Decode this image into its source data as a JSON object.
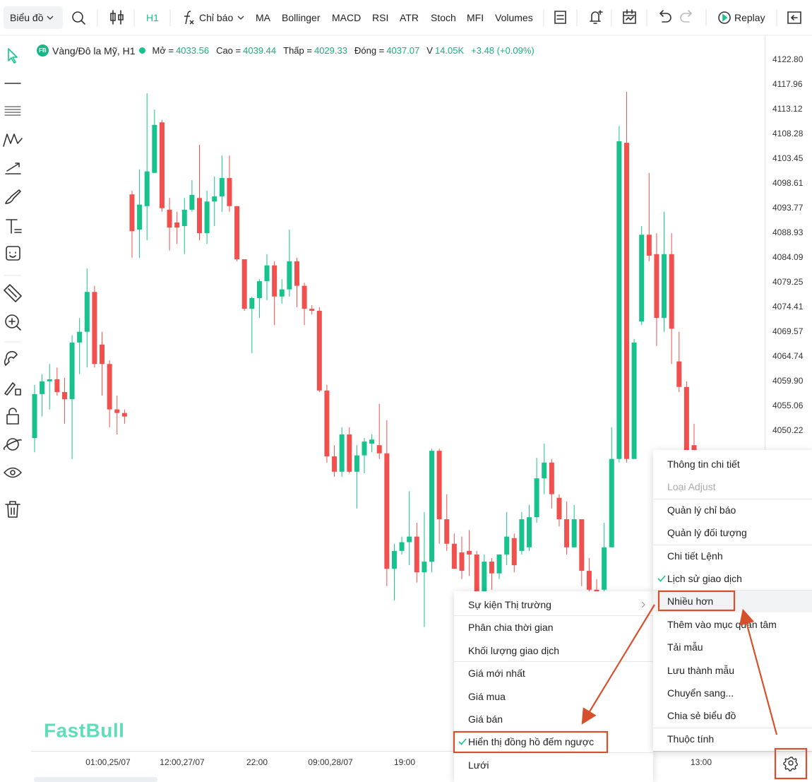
{
  "toolbar": {
    "chart_menu": "Biểu đồ",
    "interval": "H1",
    "indicators": "Chỉ báo",
    "quick_indicators": [
      "MA",
      "Bollinger",
      "MACD",
      "RSI",
      "ATR",
      "Stoch",
      "MFI",
      "Volumes"
    ],
    "replay": "Replay"
  },
  "legend": {
    "badge": "FB",
    "symbol": "Vàng/Đô la Mỹ, H1",
    "fields": [
      {
        "label": "Mở =",
        "value": 4033.56
      },
      {
        "label": "Cao =",
        "value": 4039.44
      },
      {
        "label": "Thấp =",
        "value": 4029.33
      },
      {
        "label": "Đóng =",
        "value": 4037.07
      }
    ],
    "volume_label": "V",
    "volume": "14.05K",
    "change": "+3.48 (+0.09%)"
  },
  "chart_data": {
    "type": "candlestick",
    "up_color": "#17c28d",
    "down_color": "#f0514e",
    "ylim": [
      3987.54,
      4126.95
    ],
    "yticks": [
      {
        "value": 4122.8,
        "label": "4122.80"
      },
      4117.96,
      4113.12,
      4108.28,
      4103.45,
      4098.61,
      4093.77,
      4088.93,
      4084.09,
      4079.25,
      4074.41,
      4069.57,
      4064.74,
      {
        "value": 4059.9,
        "label": "4059.90"
      },
      4055.06,
      4050.22
    ],
    "grid": false,
    "x_labels": [
      "01:00,25/07",
      "12:00,27/07",
      "22:00",
      "09:00,28/07",
      "19:00",
      "13:00"
    ],
    "ohlc": [
      [
        4048.8,
        4059.2,
        4046.0,
        4057.4
      ],
      [
        4057.4,
        4061.3,
        4053.0,
        4059.9
      ],
      [
        4059.9,
        4063.3,
        4054.4,
        4060.3
      ],
      [
        4060.3,
        4062.6,
        4057.1,
        4057.8
      ],
      [
        4057.8,
        4060.6,
        4051.6,
        4056.4
      ],
      [
        4056.4,
        4068.9,
        4044.7,
        4067.5
      ],
      [
        4067.5,
        4072.3,
        4061.3,
        4069.6
      ],
      [
        4069.6,
        4082.0,
        4062.6,
        4077.4
      ],
      [
        4077.4,
        4078.6,
        4062.6,
        4063.3
      ],
      [
        4067.1,
        4069.6,
        4057.1,
        4063.3
      ],
      [
        4063.3,
        4064.0,
        4050.9,
        4054.4
      ],
      [
        4054.4,
        4057.1,
        4049.5,
        4053.7
      ],
      [
        4053.7,
        4054.4,
        4051.6,
        4053.0
      ],
      [
        4096.5,
        4097.2,
        4084.1,
        4089.3
      ],
      [
        4089.6,
        4101.4,
        4084.1,
        4094.5
      ],
      [
        4094.2,
        4116.3,
        4087.5,
        4101.0
      ],
      [
        4100.7,
        4113.1,
        4100.7,
        4110.1
      ],
      [
        4110.6,
        4111.1,
        4093.1,
        4093.8
      ],
      [
        4093.5,
        4095.8,
        4085.5,
        4090.0
      ],
      [
        4091.0,
        4093.1,
        4086.8,
        4090.0
      ],
      [
        4090.3,
        4095.8,
        4084.8,
        4093.5
      ],
      [
        4093.5,
        4099.3,
        4093.1,
        4096.4
      ],
      [
        4095.8,
        4106.2,
        4087.5,
        4088.9
      ],
      [
        4088.9,
        4097.2,
        4086.8,
        4095.1
      ],
      [
        4095.1,
        4100.0,
        4090.3,
        4096.1
      ],
      [
        4096.1,
        4104.1,
        4093.1,
        4099.7
      ],
      [
        4099.7,
        4104.1,
        4093.1,
        4094.2
      ],
      [
        4094.2,
        4094.2,
        4083.4,
        4083.8
      ],
      [
        4083.8,
        4083.8,
        4073.7,
        4074.1
      ],
      [
        4074.1,
        4076.5,
        4065.4,
        4076.2
      ],
      [
        4076.2,
        4079.9,
        4072.3,
        4079.5
      ],
      [
        4079.5,
        4084.8,
        4075.8,
        4082.6
      ],
      [
        4082.6,
        4083.4,
        4070.9,
        4076.5
      ],
      [
        4076.5,
        4079.9,
        4075.1,
        4077.9
      ],
      [
        4077.9,
        4089.6,
        4076.5,
        4083.4
      ],
      [
        4083.4,
        4084.1,
        4074.4,
        4078.6
      ],
      [
        4078.6,
        4079.2,
        4070.9,
        4074.1
      ],
      [
        4074.1,
        4074.8,
        4073.0,
        4073.7
      ],
      [
        4073.7,
        4074.4,
        4057.8,
        4058.1
      ],
      [
        4058.1,
        4059.2,
        4044.0,
        4045.2
      ],
      [
        4045.2,
        4047.4,
        4041.2,
        4042.2
      ],
      [
        4042.2,
        4050.9,
        4041.2,
        4049.5
      ],
      [
        4049.5,
        4050.9,
        4041.9,
        4042.2
      ],
      [
        4042.2,
        4047.4,
        4035.0,
        4045.4
      ],
      [
        4045.4,
        4048.8,
        4041.9,
        4048.1
      ],
      [
        4047.7,
        4049.5,
        4046.0,
        4048.5
      ],
      [
        4047.4,
        4055.5,
        4044.7,
        4045.8
      ],
      [
        4045.8,
        4052.3,
        4019.8,
        4023.2
      ],
      [
        4023.2,
        4028.1,
        4017.0,
        4026.7
      ],
      [
        4026.7,
        4029.5,
        4026.0,
        4028.4
      ],
      [
        4028.4,
        4038.4,
        4023.9,
        4029.5
      ],
      [
        4029.5,
        4032.2,
        4020.5,
        4022.5
      ],
      [
        4022.5,
        4034.3,
        4011.8,
        4024.6
      ],
      [
        4024.6,
        4046.7,
        4022.5,
        4046.3
      ],
      [
        4046.3,
        4046.7,
        4028.1,
        4032.9
      ],
      [
        4032.9,
        4037.8,
        4026.7,
        4028.1
      ],
      [
        4028.1,
        4030.1,
        4023.2,
        4023.2
      ],
      [
        4026.4,
        4029.5,
        4021.2,
        4022.8
      ],
      [
        4026.7,
        4030.8,
        4021.8,
        4026.0
      ],
      [
        4026.0,
        4026.7,
        4018.4,
        4018.4
      ],
      [
        4018.4,
        4026.0,
        4017.7,
        4024.6
      ],
      [
        4024.6,
        4025.3,
        4019.1,
        4022.3
      ],
      [
        4022.3,
        4026.0,
        4021.2,
        4026.0
      ],
      [
        4026.0,
        4034.3,
        4023.9,
        4029.5
      ],
      [
        4029.2,
        4030.1,
        4022.5,
        4023.9
      ],
      [
        4026.7,
        4034.3,
        4026.0,
        4032.9
      ],
      [
        4027.4,
        4035.7,
        4026.7,
        4033.3
      ],
      [
        4033.3,
        4044.9,
        4032.2,
        4040.9
      ],
      [
        4040.9,
        4047.7,
        4037.8,
        4044.0
      ],
      [
        4044.0,
        4044.7,
        4035.0,
        4037.8
      ],
      [
        4037.1,
        4037.8,
        4031.5,
        4032.9
      ],
      [
        4032.9,
        4036.4,
        4026.0,
        4027.4
      ],
      [
        4027.4,
        4035.7,
        4027.4,
        4032.9
      ],
      [
        4032.9,
        4032.9,
        4019.8,
        4022.8
      ],
      [
        4022.8,
        4025.3,
        4018.4,
        4019.1
      ],
      [
        4019.1,
        4021.2,
        4017.7,
        4018.4
      ],
      [
        4019.1,
        4032.2,
        4018.4,
        4027.4
      ],
      [
        4027.4,
        4050.9,
        4027.4,
        4044.7
      ],
      [
        4044.7,
        4109.9,
        4044.0,
        4106.9
      ],
      [
        4106.6,
        4116.6,
        4044.0,
        4044.7
      ],
      [
        4044.7,
        4068.2,
        4044.7,
        4067.5
      ],
      [
        4071.6,
        4090.3,
        4070.9,
        4088.6
      ],
      [
        4088.6,
        4100.7,
        4083.4,
        4084.5
      ],
      [
        4084.8,
        4088.9,
        4066.8,
        4072.3
      ],
      [
        4072.3,
        4093.1,
        4069.6,
        4084.8
      ],
      [
        4084.8,
        4088.9,
        4063.3,
        4070.2
      ],
      [
        4063.8,
        4069.6,
        4057.8,
        4058.8
      ],
      [
        4058.8,
        4059.9,
        4046.0,
        4046.0
      ],
      [
        4047.4,
        4051.6,
        4046.0,
        4046.0
      ]
    ]
  },
  "watermark": "FastBull",
  "context_menu": {
    "items": [
      {
        "label": "Thông tin chi tiết"
      },
      {
        "label": "Loại Adjust",
        "disabled": true
      },
      {
        "label": "Quản lý chỉ báo"
      },
      {
        "label": "Quản lý đối tượng"
      },
      {
        "label": "Chi tiết Lệnh"
      },
      {
        "label": "Lịch sử giao dịch",
        "checked": true
      },
      {
        "label": "Nhiều hơn",
        "active": true
      },
      {
        "label": "Thêm vào mục quan tâm"
      },
      {
        "label": "Tải mẫu"
      },
      {
        "label": "Lưu thành mẫu"
      },
      {
        "label": "Chuyển sang..."
      },
      {
        "label": "Chia sẻ biểu đồ"
      },
      {
        "label": "Thuộc tính"
      }
    ]
  },
  "submenu": {
    "items": [
      {
        "label": "Sự kiện Thị trường",
        "has_submenu": true
      },
      {
        "label": "Phân chia thời gian"
      },
      {
        "label": "Khối lượng giao dịch"
      },
      {
        "label": "Giá mới nhất"
      },
      {
        "label": "Giá mua"
      },
      {
        "label": "Giá bán"
      },
      {
        "label": "Hiển thị đồng hồ đếm ngược",
        "checked": true
      },
      {
        "label": "Lưới"
      }
    ]
  }
}
